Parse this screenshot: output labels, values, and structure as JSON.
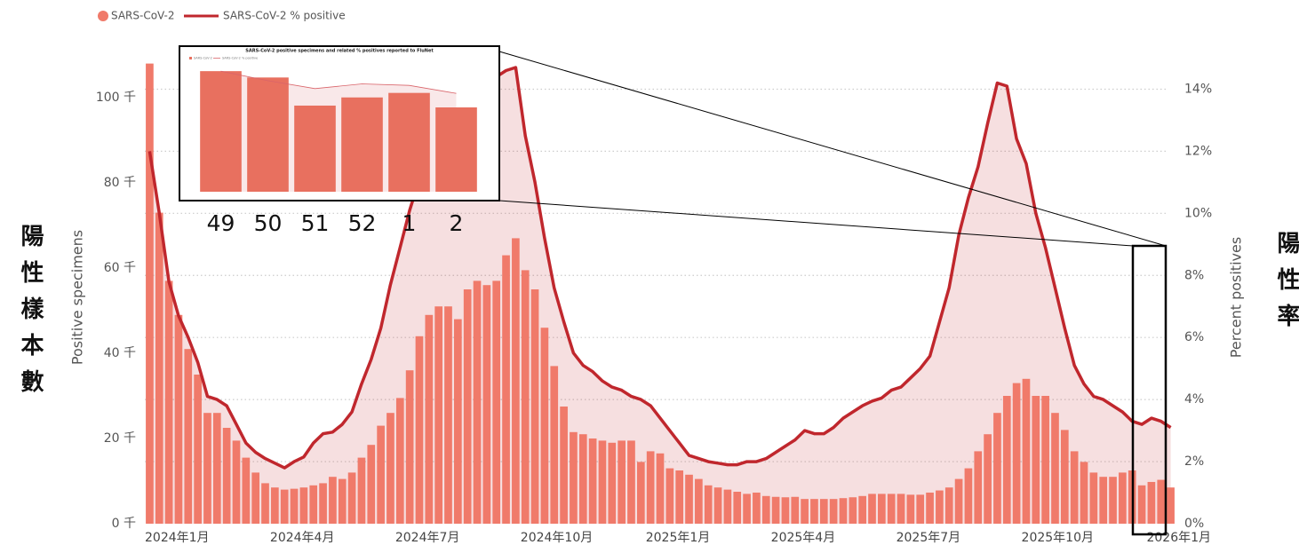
{
  "chart_data": [
    {
      "type": "bar",
      "y_label": "Positive specimens",
      "y2_label": "Percent positives",
      "left_note": "陽性樣本數",
      "right_note": "陽性率",
      "categories": [
        "2024年1月",
        null,
        null,
        null,
        null,
        null,
        null,
        null,
        null,
        null,
        null,
        null,
        null,
        "2024年4月",
        null,
        null,
        null,
        null,
        null,
        null,
        null,
        null,
        null,
        null,
        null,
        null,
        "2024年7月",
        null,
        null,
        null,
        null,
        null,
        null,
        null,
        null,
        null,
        null,
        null,
        null,
        "2024年10月",
        null,
        null,
        null,
        null,
        null,
        null,
        null,
        null,
        null,
        null,
        null,
        null,
        "2025年1月",
        null,
        null,
        null,
        null,
        null,
        null,
        null,
        null,
        null,
        null,
        null,
        null,
        "2025年4月",
        null,
        null,
        null,
        null,
        null,
        null,
        null,
        null,
        null,
        null,
        null,
        null,
        "2025年7月",
        null,
        null,
        null,
        null,
        null,
        null,
        null,
        null,
        null,
        null,
        null,
        null,
        "2025年10月",
        null,
        null,
        null,
        null,
        null,
        null,
        null,
        null,
        null,
        null,
        null,
        null,
        "2026年1月",
        null,
        null
      ],
      "series": [
        {
          "name": "SARS-CoV-2",
          "type": "bar",
          "color": "#f07a6a",
          "values": [
            108000,
            73000,
            57000,
            49000,
            41000,
            35000,
            26000,
            26000,
            22500,
            19500,
            15500,
            12000,
            9500,
            8500,
            8000,
            8200,
            8500,
            9000,
            9500,
            11000,
            10500,
            12000,
            15500,
            18500,
            23000,
            26000,
            29500,
            36000,
            44000,
            49000,
            51000,
            51000,
            48000,
            55000,
            57000,
            56000,
            57000,
            63000,
            67000,
            59500,
            55000,
            46000,
            37000,
            27500,
            21500,
            21000,
            20000,
            19500,
            19000,
            19500,
            19500,
            14500,
            17000,
            16500,
            13000,
            12500,
            11500,
            10500,
            9000,
            8500,
            8000,
            7500,
            7000,
            7300,
            6500,
            6300,
            6200,
            6300,
            5800,
            5800,
            5800,
            5800,
            6000,
            6200,
            6500,
            7000,
            7000,
            7000,
            7000,
            6800,
            6800,
            7300,
            7800,
            8500,
            10500,
            13000,
            17000,
            21000,
            26000,
            30000,
            33000,
            34000,
            30000,
            30000,
            26000,
            22000,
            17000,
            14500,
            12000,
            11000,
            11000,
            12000,
            12500,
            9000,
            9800,
            10300,
            8500
          ]
        },
        {
          "name": "SARS-CoV-2 % positive",
          "type": "line",
          "axis": "y2",
          "color": "#c0272d",
          "values": [
            12,
            10,
            7.8,
            6.7,
            6,
            5.2,
            4.1,
            4.0,
            3.8,
            3.2,
            2.6,
            2.3,
            2.1,
            1.95,
            1.8,
            2.0,
            2.15,
            2.6,
            2.9,
            2.95,
            3.2,
            3.6,
            4.5,
            5.3,
            6.3,
            7.7,
            8.9,
            10.1,
            11.1,
            11.9,
            12.5,
            13,
            13.5,
            13.8,
            14.0,
            14.3,
            14.4,
            14.6,
            14.7,
            12.5,
            11,
            9.2,
            7.6,
            6.5,
            5.5,
            5.1,
            4.9,
            4.6,
            4.4,
            4.3,
            4.1,
            4.0,
            3.8,
            3.4,
            3.0,
            2.6,
            2.2,
            2.1,
            2.0,
            1.95,
            1.9,
            1.9,
            2.0,
            2.0,
            2.1,
            2.3,
            2.5,
            2.7,
            3.0,
            2.9,
            2.9,
            3.1,
            3.4,
            3.6,
            3.8,
            3.95,
            4.05,
            4.3,
            4.4,
            4.7,
            5.0,
            5.4,
            6.5,
            7.6,
            9.3,
            10.5,
            11.5,
            12.9,
            14.2,
            14.1,
            12.4,
            11.6,
            10,
            8.9,
            7.6,
            6.3,
            5.1,
            4.5,
            4.1,
            4.0,
            3.8,
            3.6,
            3.3,
            3.2,
            3.4,
            3.3,
            3.1
          ]
        }
      ],
      "ylim": [
        0,
        110000
      ],
      "yticks": [
        {
          "value": 0,
          "label": "0 千"
        },
        {
          "value": 20000,
          "label": "20 千"
        },
        {
          "value": 40000,
          "label": "40 千"
        },
        {
          "value": 60000,
          "label": "60 千"
        },
        {
          "value": 80000,
          "label": "80 千"
        },
        {
          "value": 100000,
          "label": "100 千"
        }
      ],
      "y2lim": [
        0,
        15.1
      ],
      "y2ticks": [
        {
          "value": 0,
          "label": "0%"
        },
        {
          "value": 2,
          "label": "2%"
        },
        {
          "value": 4,
          "label": "4%"
        },
        {
          "value": 6,
          "label": "6%"
        },
        {
          "value": 8,
          "label": "8%"
        },
        {
          "value": 10,
          "label": "10%"
        },
        {
          "value": 12,
          "label": "12%"
        },
        {
          "value": 14,
          "label": "14%"
        }
      ],
      "grid": true,
      "legend": "top-left"
    },
    {
      "type": "bar",
      "title": "SARS-CoV-2 positive specimens and related % positives reported to FluNet",
      "categories": [
        "49",
        "50",
        "51",
        "52",
        "1",
        "2"
      ],
      "series": [
        {
          "name": "SARS-CoV-2",
          "type": "bar",
          "color": "#e8705f",
          "values": [
            13300,
            12600,
            9500,
            10400,
            10900,
            9300
          ]
        },
        {
          "name": "SARS-CoV-2 % positive",
          "type": "line",
          "axis": "y2",
          "color": "#d9646a",
          "values": [
            3.8,
            3.5,
            3.25,
            3.4,
            3.35,
            3.1
          ]
        }
      ],
      "ylim": [
        0,
        14000
      ],
      "y2lim": [
        0,
        4
      ]
    }
  ]
}
